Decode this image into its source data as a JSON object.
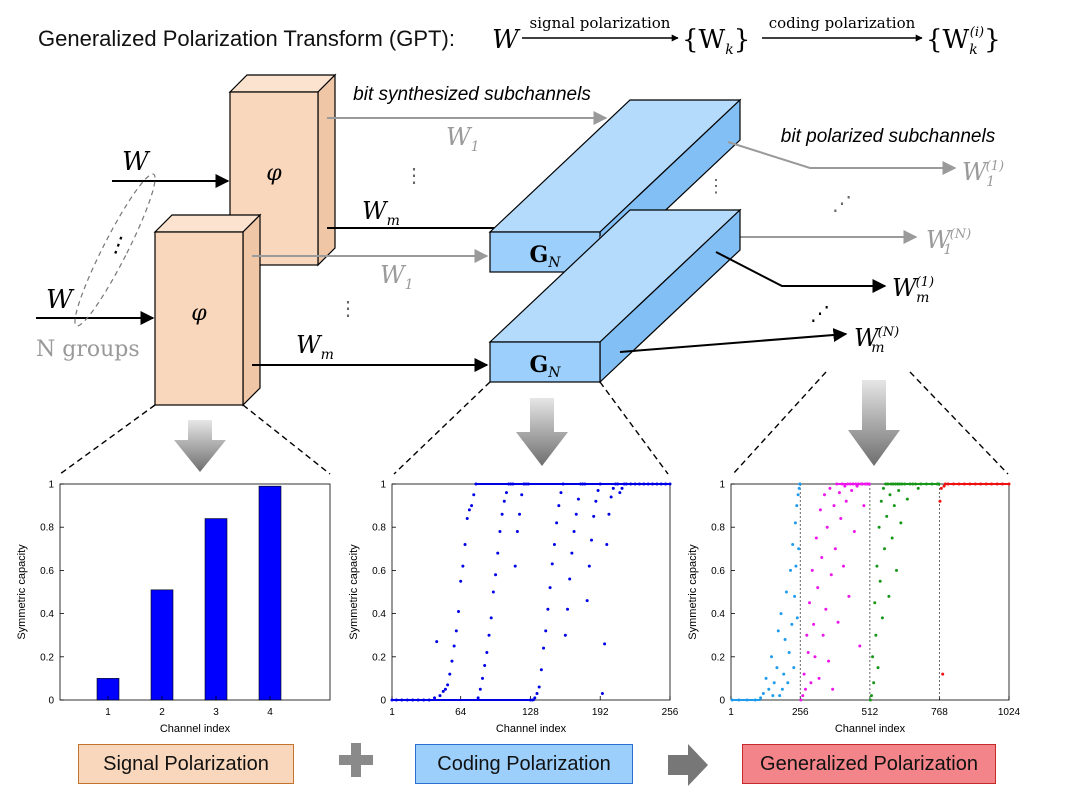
{
  "header": {
    "title": "Generalized Polarization Transform (GPT):",
    "symbol_W": "W",
    "arrow1_label": "signal polarization",
    "arrow2_label": "coding polarization",
    "set_k": "{W",
    "set_k_sub": "k",
    "set_k_close": "}",
    "set_ki": "{W",
    "set_ki_sub": "k",
    "set_ki_sup": "(i)",
    "set_ki_close": "}"
  },
  "diagram": {
    "phi": "φ",
    "input_W": "W",
    "groups_label": "N groups",
    "dots": "⋮",
    "diag_dots": "⋰",
    "out_Wm": "W",
    "out_Wm_sub": "m",
    "out_W1": "W",
    "out_W1_sub": "1",
    "GN": "G",
    "GN_sub": "N",
    "bit_synth_label": "bit synthesized subchannels",
    "bit_polar_label": "bit polarized subchannels",
    "pol_W": "W",
    "sup_1": "(1)",
    "sup_N": "(N)",
    "sub_1": "1",
    "sub_m": "m"
  },
  "colors": {
    "phi_fill": "#f9d7bc",
    "phi_top": "#fbe3cf",
    "phi_side": "#efc6a6",
    "gn_fill": "#9ccffb",
    "gn_top": "#b4dbfc",
    "gn_side": "#82bff5",
    "bar": "#0000ff",
    "scatter_blue": "#0000e6",
    "c1": "#1e9bec",
    "c2": "#ec16ec",
    "c3": "#17961a",
    "c4": "#ee1010",
    "gray": "#9a9a9a"
  },
  "chart_data": [
    {
      "type": "bar",
      "categories": [
        "1",
        "2",
        "3",
        "4"
      ],
      "values": [
        0.1,
        0.51,
        0.84,
        0.99
      ],
      "xlabel": "Channel index",
      "ylabel": "Symmetric capacity",
      "ylim": [
        0,
        1
      ],
      "yticks": [
        "0",
        "0.2",
        "0.4",
        "0.6",
        "0.8",
        "1"
      ]
    },
    {
      "type": "scatter",
      "xlabel": "Channel index",
      "ylabel": "Symmetric capacity",
      "xlim": [
        1,
        256
      ],
      "ylim": [
        0,
        1
      ],
      "xticks": [
        "1",
        "64",
        "128",
        "192",
        "256"
      ],
      "yticks": [
        "0",
        "0.2",
        "0.4",
        "0.6",
        "0.8",
        "1"
      ],
      "series": [
        {
          "values": [
            [
              1,
              0.0
            ],
            [
              5,
              0.0
            ],
            [
              10,
              0.0
            ],
            [
              15,
              0.0
            ],
            [
              20,
              0.0
            ],
            [
              25,
              0.0
            ],
            [
              30,
              0.0
            ],
            [
              35,
              0.0
            ],
            [
              40,
              0.01
            ],
            [
              42,
              0.27
            ],
            [
              45,
              0.02
            ],
            [
              48,
              0.04
            ],
            [
              50,
              0.05
            ],
            [
              52,
              0.07
            ],
            [
              54,
              0.12
            ],
            [
              56,
              0.18
            ],
            [
              58,
              0.25
            ],
            [
              60,
              0.32
            ],
            [
              62,
              0.41
            ],
            [
              64,
              0.55
            ],
            [
              66,
              0.62
            ],
            [
              68,
              0.72
            ],
            [
              70,
              0.84
            ],
            [
              72,
              0.88
            ],
            [
              74,
              0.9
            ],
            [
              76,
              0.95
            ],
            [
              78,
              1.0
            ],
            [
              80,
              0.01
            ],
            [
              82,
              0.05
            ],
            [
              84,
              0.1
            ],
            [
              86,
              0.16
            ],
            [
              88,
              0.22
            ],
            [
              90,
              0.3
            ],
            [
              92,
              0.38
            ],
            [
              94,
              0.5
            ],
            [
              96,
              0.58
            ],
            [
              98,
              0.68
            ],
            [
              100,
              0.78
            ],
            [
              102,
              0.86
            ],
            [
              104,
              0.92
            ],
            [
              106,
              0.96
            ],
            [
              108,
              1.0
            ],
            [
              110,
              1.0
            ],
            [
              112,
              1.0
            ],
            [
              114,
              0.62
            ],
            [
              116,
              0.78
            ],
            [
              118,
              0.86
            ],
            [
              120,
              0.95
            ],
            [
              122,
              1.0
            ],
            [
              124,
              1.0
            ],
            [
              126,
              1.0
            ],
            [
              128,
              0.0
            ],
            [
              130,
              0.0
            ],
            [
              132,
              0.01
            ],
            [
              134,
              0.03
            ],
            [
              136,
              0.06
            ],
            [
              138,
              0.14
            ],
            [
              140,
              0.24
            ],
            [
              142,
              0.32
            ],
            [
              144,
              0.42
            ],
            [
              146,
              0.52
            ],
            [
              148,
              0.63
            ],
            [
              150,
              0.72
            ],
            [
              152,
              0.82
            ],
            [
              154,
              0.9
            ],
            [
              156,
              0.96
            ],
            [
              158,
              1.0
            ],
            [
              160,
              0.3
            ],
            [
              162,
              0.42
            ],
            [
              164,
              0.56
            ],
            [
              166,
              0.68
            ],
            [
              168,
              0.78
            ],
            [
              170,
              0.86
            ],
            [
              172,
              0.93
            ],
            [
              174,
              1.0
            ],
            [
              176,
              1.0
            ],
            [
              178,
              1.0
            ],
            [
              180,
              0.46
            ],
            [
              182,
              0.62
            ],
            [
              184,
              0.74
            ],
            [
              186,
              0.85
            ],
            [
              188,
              0.92
            ],
            [
              190,
              0.97
            ],
            [
              192,
              1.0
            ],
            [
              194,
              0.03
            ],
            [
              196,
              0.26
            ],
            [
              198,
              0.72
            ],
            [
              200,
              0.86
            ],
            [
              202,
              0.94
            ],
            [
              204,
              0.98
            ],
            [
              206,
              1.0
            ],
            [
              208,
              1.0
            ],
            [
              210,
              0.96
            ],
            [
              212,
              0.98
            ],
            [
              214,
              1.0
            ],
            [
              216,
              1.0
            ],
            [
              220,
              1.0
            ],
            [
              224,
              1.0
            ],
            [
              228,
              1.0
            ],
            [
              232,
              1.0
            ],
            [
              236,
              1.0
            ],
            [
              240,
              1.0
            ],
            [
              244,
              1.0
            ],
            [
              248,
              1.0
            ],
            [
              252,
              1.0
            ],
            [
              256,
              1.0
            ]
          ]
        }
      ]
    },
    {
      "type": "scatter",
      "xlabel": "Channel index",
      "ylabel": "Symmetric capacity",
      "xlim": [
        1,
        1024
      ],
      "ylim": [
        0,
        1
      ],
      "xticks": [
        "1",
        "256",
        "512",
        "768",
        "1024"
      ],
      "yticks": [
        "0",
        "0.2",
        "0.4",
        "0.6",
        "0.8",
        "1"
      ],
      "dividers": [
        256,
        512,
        768
      ],
      "series": [
        {
          "values": [
            [
              5,
              0.0
            ],
            [
              30,
              0.0
            ],
            [
              60,
              0.0
            ],
            [
              90,
              0.0
            ],
            [
              110,
              0.01
            ],
            [
              120,
              0.03
            ],
            [
              130,
              0.1
            ],
            [
              140,
              0.05
            ],
            [
              150,
              0.2
            ],
            [
              155,
              0.02
            ],
            [
              160,
              0.08
            ],
            [
              170,
              0.15
            ],
            [
              175,
              0.32
            ],
            [
              180,
              0.02
            ],
            [
              185,
              0.4
            ],
            [
              190,
              0.05
            ],
            [
              195,
              0.12
            ],
            [
              200,
              0.28
            ],
            [
              205,
              0.5
            ],
            [
              210,
              0.08
            ],
            [
              215,
              0.22
            ],
            [
              220,
              0.6
            ],
            [
              225,
              0.35
            ],
            [
              228,
              0.72
            ],
            [
              232,
              0.15
            ],
            [
              235,
              0.48
            ],
            [
              238,
              0.82
            ],
            [
              240,
              0.62
            ],
            [
              243,
              0.9
            ],
            [
              245,
              0.38
            ],
            [
              248,
              0.95
            ],
            [
              250,
              0.7
            ],
            [
              252,
              0.98
            ],
            [
              254,
              1.0
            ],
            [
              255,
              1.0
            ]
          ]
        },
        {
          "values": [
            [
              258,
              0.0
            ],
            [
              265,
              0.02
            ],
            [
              270,
              0.12
            ],
            [
              275,
              0.05
            ],
            [
              280,
              0.3
            ],
            [
              285,
              0.22
            ],
            [
              290,
              0.45
            ],
            [
              295,
              0.08
            ],
            [
              300,
              0.6
            ],
            [
              305,
              0.35
            ],
            [
              310,
              0.2
            ],
            [
              315,
              0.75
            ],
            [
              320,
              0.52
            ],
            [
              325,
              0.1
            ],
            [
              330,
              0.88
            ],
            [
              335,
              0.66
            ],
            [
              340,
              0.3
            ],
            [
              345,
              0.95
            ],
            [
              350,
              0.42
            ],
            [
              355,
              0.8
            ],
            [
              360,
              0.18
            ],
            [
              365,
              0.98
            ],
            [
              370,
              0.58
            ],
            [
              375,
              0.05
            ],
            [
              380,
              0.9
            ],
            [
              385,
              0.7
            ],
            [
              390,
              1.0
            ],
            [
              395,
              0.36
            ],
            [
              400,
              0.96
            ],
            [
              405,
              0.84
            ],
            [
              410,
              1.0
            ],
            [
              415,
              0.62
            ],
            [
              420,
              0.99
            ],
            [
              425,
              0.92
            ],
            [
              430,
              1.0
            ],
            [
              435,
              0.48
            ],
            [
              440,
              1.0
            ],
            [
              445,
              0.97
            ],
            [
              450,
              1.0
            ],
            [
              455,
              0.78
            ],
            [
              460,
              1.0
            ],
            [
              465,
              0.99
            ],
            [
              470,
              1.0
            ],
            [
              475,
              0.25
            ],
            [
              480,
              1.0
            ],
            [
              485,
              1.0
            ],
            [
              490,
              0.9
            ],
            [
              495,
              1.0
            ],
            [
              500,
              1.0
            ],
            [
              505,
              1.0
            ],
            [
              510,
              1.0
            ]
          ]
        },
        {
          "values": [
            [
              514,
              0.0
            ],
            [
              518,
              0.02
            ],
            [
              522,
              0.2
            ],
            [
              526,
              0.08
            ],
            [
              530,
              0.45
            ],
            [
              534,
              0.3
            ],
            [
              538,
              0.62
            ],
            [
              542,
              0.15
            ],
            [
              546,
              0.8
            ],
            [
              550,
              0.55
            ],
            [
              554,
              0.92
            ],
            [
              558,
              0.38
            ],
            [
              562,
              0.98
            ],
            [
              566,
              0.7
            ],
            [
              570,
              1.0
            ],
            [
              574,
              0.85
            ],
            [
              578,
              1.0
            ],
            [
              582,
              0.48
            ],
            [
              586,
              0.95
            ],
            [
              590,
              1.0
            ],
            [
              594,
              0.75
            ],
            [
              598,
              1.0
            ],
            [
              602,
              0.9
            ],
            [
              606,
              1.0
            ],
            [
              610,
              0.6
            ],
            [
              614,
              1.0
            ],
            [
              618,
              0.97
            ],
            [
              622,
              1.0
            ],
            [
              626,
              0.82
            ],
            [
              630,
              1.0
            ],
            [
              640,
              1.0
            ],
            [
              650,
              0.93
            ],
            [
              660,
              1.0
            ],
            [
              670,
              1.0
            ],
            [
              680,
              1.0
            ],
            [
              690,
              0.98
            ],
            [
              700,
              1.0
            ],
            [
              720,
              1.0
            ],
            [
              740,
              1.0
            ],
            [
              760,
              1.0
            ],
            [
              766,
              1.0
            ]
          ]
        },
        {
          "values": [
            [
              770,
              0.92
            ],
            [
              775,
              0.98
            ],
            [
              780,
              0.12
            ],
            [
              785,
              0.99
            ],
            [
              790,
              1.0
            ],
            [
              800,
              1.0
            ],
            [
              820,
              1.0
            ],
            [
              840,
              1.0
            ],
            [
              860,
              1.0
            ],
            [
              880,
              1.0
            ],
            [
              900,
              1.0
            ],
            [
              920,
              1.0
            ],
            [
              940,
              1.0
            ],
            [
              960,
              1.0
            ],
            [
              980,
              1.0
            ],
            [
              1000,
              1.0
            ],
            [
              1024,
              1.0
            ]
          ]
        }
      ]
    }
  ],
  "bottom": {
    "signal": "Signal Polarization",
    "coding": "Coding Polarization",
    "generalized": "Generalized Polarization",
    "plus": "+"
  }
}
